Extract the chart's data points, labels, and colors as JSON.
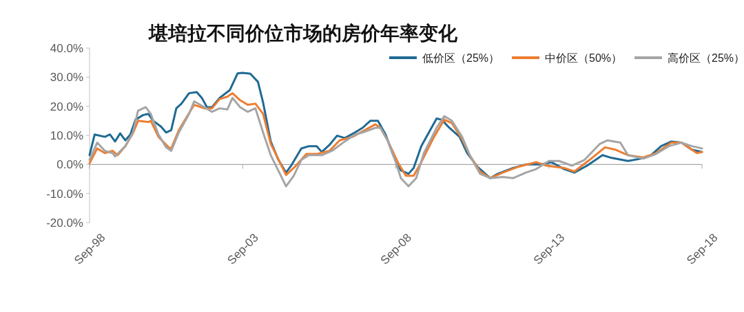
{
  "chart_data": {
    "type": "line",
    "title": "堪培拉不同价位市场的房价年率变化",
    "legend": "top right",
    "xlim": [
      "1998-09",
      "2018-09"
    ],
    "xticks": [
      {
        "value": "1998-09",
        "label": "Sep-98"
      },
      {
        "value": "2003-09",
        "label": "Sep-03"
      },
      {
        "value": "2008-09",
        "label": "Sep-08"
      },
      {
        "value": "2013-09",
        "label": "Sep-13"
      },
      {
        "value": "2018-09",
        "label": "Sep-18"
      }
    ],
    "ylim": [
      -20,
      40
    ],
    "yticks": [
      {
        "value": -20,
        "label": "-20.0%"
      },
      {
        "value": -10,
        "label": "-10.0%"
      },
      {
        "value": 0,
        "label": "0.0%"
      },
      {
        "value": 10,
        "label": "10.0%"
      },
      {
        "value": 20,
        "label": "20.0%"
      },
      {
        "value": 30,
        "label": "30.0%"
      },
      {
        "value": 40,
        "label": "40.0%"
      }
    ],
    "series": [
      {
        "name": "低价区（25%）",
        "color": "#1f6a93",
        "x": [
          "1998-09",
          "1998-11",
          "1999-03",
          "1999-05",
          "1999-07",
          "1999-09",
          "1999-11",
          "2000-01",
          "2000-03",
          "2000-06",
          "2000-08",
          "2000-10",
          "2001-01",
          "2001-03",
          "2001-05",
          "2001-07",
          "2001-09",
          "2001-12",
          "2002-03",
          "2002-05",
          "2002-07",
          "2002-09",
          "2002-12",
          "2003-04",
          "2003-07",
          "2003-09",
          "2003-12",
          "2004-03",
          "2004-05",
          "2004-08",
          "2004-11",
          "2005-02",
          "2005-04",
          "2005-08",
          "2005-11",
          "2006-02",
          "2006-04",
          "2006-07",
          "2006-10",
          "2007-01",
          "2007-05",
          "2007-08",
          "2007-11",
          "2008-02",
          "2008-05",
          "2008-08",
          "2008-11",
          "2009-02",
          "2009-04",
          "2009-07",
          "2010-01",
          "2010-03",
          "2010-06",
          "2010-10",
          "2011-01",
          "2011-05",
          "2011-10",
          "2012-01",
          "2012-07",
          "2012-12",
          "2013-06",
          "2013-10",
          "2014-03",
          "2014-07",
          "2014-12",
          "2015-06",
          "2015-09",
          "2016-04",
          "2016-09",
          "2017-01",
          "2017-05",
          "2017-09",
          "2018-01",
          "2018-05",
          "2018-07",
          "2018-09"
        ],
        "values": [
          3.2,
          10.3,
          9.5,
          10.3,
          7.9,
          10.7,
          8.3,
          10.3,
          15.4,
          17,
          17.4,
          15,
          13,
          11,
          11.8,
          19.3,
          20.9,
          24.5,
          24.9,
          22.9,
          19.7,
          19.7,
          22.9,
          25.6,
          31.3,
          31.5,
          31.2,
          28.4,
          21.3,
          7.9,
          1.6,
          -2.8,
          -0.4,
          5.5,
          6.3,
          6.3,
          4.3,
          6.7,
          9.9,
          9.1,
          11,
          12.6,
          15,
          15,
          10.3,
          3.2,
          -2,
          -3.2,
          -1.2,
          6.3,
          15.8,
          15.4,
          12.6,
          9.5,
          3.9,
          -0.8,
          -4.7,
          -3.2,
          -1.2,
          0,
          0,
          0.8,
          -1.6,
          -2.8,
          -0.4,
          3.2,
          2.4,
          1.2,
          2,
          3.2,
          6.3,
          7.9,
          7.5,
          5.1,
          4.7,
          4.3
        ]
      },
      {
        "name": "中价区（50%）",
        "color": "#ed7d31",
        "x": [
          "1998-09",
          "1998-12",
          "1999-03",
          "1999-06",
          "1999-08",
          "1999-11",
          "2000-02",
          "2000-04",
          "2000-08",
          "2000-09",
          "2000-12",
          "2001-04",
          "2001-05",
          "2001-08",
          "2001-11",
          "2002-02",
          "2002-06",
          "2002-09",
          "2002-12",
          "2003-03",
          "2003-05",
          "2003-08",
          "2003-11",
          "2004-02",
          "2004-05",
          "2004-08",
          "2004-12",
          "2005-02",
          "2005-05",
          "2005-10",
          "2006-02",
          "2006-07",
          "2006-11",
          "2007-04",
          "2007-08",
          "2008-01",
          "2008-03",
          "2008-06",
          "2008-10",
          "2009-01",
          "2009-04",
          "2009-07",
          "2009-12",
          "2010-04",
          "2010-07",
          "2010-11",
          "2011-02",
          "2011-06",
          "2011-10",
          "2012-03",
          "2012-09",
          "2013-04",
          "2013-08",
          "2014-03",
          "2014-07",
          "2015-01",
          "2015-07",
          "2015-11",
          "2016-04",
          "2016-10",
          "2017-03",
          "2017-09",
          "2018-01",
          "2018-07",
          "2018-09"
        ],
        "values": [
          0.4,
          5.5,
          3.9,
          4.7,
          3.2,
          6.3,
          10.7,
          15,
          14.6,
          15,
          9.5,
          5.9,
          5.5,
          11.8,
          16.2,
          20.5,
          19.3,
          19.3,
          22.5,
          23.3,
          24.5,
          22.1,
          20.5,
          20.9,
          17.4,
          7.1,
          0,
          -3.6,
          -1.2,
          3.6,
          3.6,
          4.7,
          8.3,
          9.5,
          11.4,
          13.8,
          12.6,
          7.9,
          0.4,
          -3.9,
          -3.9,
          0.8,
          9.5,
          15.4,
          14.2,
          8.7,
          3.2,
          -2.4,
          -4.7,
          -2.8,
          -0.8,
          0.8,
          -0.4,
          -1.2,
          -2.4,
          1.6,
          5.9,
          5.1,
          3.2,
          2.4,
          3.9,
          7.5,
          7.5,
          3.9,
          4.3
        ]
      },
      {
        "name": "高价区（25%）",
        "color": "#a5a5a5",
        "x": [
          "1998-09",
          "1998-12",
          "1999-03",
          "1999-06",
          "1999-07",
          "1999-11",
          "2000-02",
          "2000-04",
          "2000-07",
          "2000-09",
          "2000-12",
          "2001-03",
          "2001-05",
          "2001-08",
          "2001-12",
          "2002-02",
          "2002-06",
          "2002-09",
          "2002-12",
          "2003-03",
          "2003-05",
          "2003-08",
          "2003-11",
          "2004-02",
          "2004-05",
          "2004-08",
          "2004-12",
          "2005-02",
          "2005-05",
          "2005-08",
          "2005-11",
          "2006-04",
          "2006-08",
          "2007-01",
          "2007-05",
          "2007-08",
          "2008-01",
          "2008-03",
          "2008-06",
          "2008-09",
          "2008-11",
          "2009-02",
          "2009-05",
          "2009-08",
          "2010-01",
          "2010-04",
          "2010-07",
          "2010-11",
          "2011-02",
          "2011-06",
          "2011-10",
          "2012-03",
          "2012-07",
          "2012-12",
          "2013-04",
          "2013-09",
          "2014-01",
          "2014-06",
          "2014-11",
          "2015-05",
          "2015-08",
          "2016-01",
          "2016-04",
          "2016-10",
          "2017-03",
          "2017-08",
          "2018-01",
          "2018-05",
          "2018-09"
        ],
        "values": [
          1.6,
          7.5,
          4.7,
          3.9,
          2.8,
          6.3,
          11,
          18.5,
          19.7,
          17.4,
          10.3,
          5.9,
          4.7,
          11,
          17.4,
          21.7,
          19.7,
          18.1,
          19.3,
          18.9,
          22.9,
          19.7,
          18.1,
          19.3,
          11,
          3.2,
          -3.9,
          -7.5,
          -3.9,
          1.6,
          3.2,
          3.2,
          4.7,
          7.9,
          10.3,
          11,
          12.6,
          12.6,
          7.9,
          0.8,
          -4.7,
          -7.5,
          -4.7,
          3.9,
          12.6,
          16.6,
          15,
          9.5,
          3.2,
          -3.2,
          -4.7,
          -4.3,
          -4.7,
          -2.8,
          -1.6,
          1.2,
          1.2,
          -0.4,
          1.6,
          7.1,
          8.3,
          7.5,
          3.2,
          2,
          3.6,
          6.3,
          7.5,
          6.3,
          5.5
        ]
      }
    ]
  }
}
